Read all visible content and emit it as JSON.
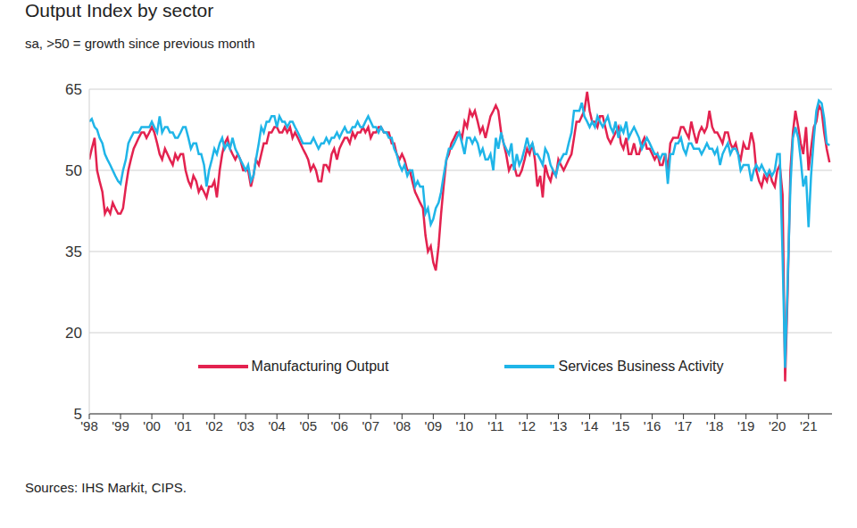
{
  "chart_data": {
    "type": "line",
    "title": "Output Index by sector",
    "subtitle": "sa, >50 = growth since previous month",
    "source": "Sources: IHS Markit, CIPS.",
    "x": [
      1998,
      1998.08,
      1998.17,
      1998.25,
      1998.33,
      1998.42,
      1998.5,
      1998.58,
      1998.67,
      1998.75,
      1998.83,
      1998.92,
      1999,
      1999.08,
      1999.17,
      1999.25,
      1999.33,
      1999.42,
      1999.5,
      1999.58,
      1999.67,
      1999.75,
      1999.83,
      1999.92,
      2000,
      2000.08,
      2000.17,
      2000.25,
      2000.33,
      2000.42,
      2000.5,
      2000.58,
      2000.67,
      2000.75,
      2000.83,
      2000.92,
      2001,
      2001.08,
      2001.17,
      2001.25,
      2001.33,
      2001.42,
      2001.5,
      2001.58,
      2001.67,
      2001.75,
      2001.83,
      2001.92,
      2002,
      2002.08,
      2002.17,
      2002.25,
      2002.33,
      2002.42,
      2002.5,
      2002.58,
      2002.67,
      2002.75,
      2002.83,
      2002.92,
      2003,
      2003.08,
      2003.17,
      2003.25,
      2003.33,
      2003.42,
      2003.5,
      2003.58,
      2003.67,
      2003.75,
      2003.83,
      2003.92,
      2004,
      2004.08,
      2004.17,
      2004.25,
      2004.33,
      2004.42,
      2004.5,
      2004.58,
      2004.67,
      2004.75,
      2004.83,
      2004.92,
      2005,
      2005.08,
      2005.17,
      2005.25,
      2005.33,
      2005.42,
      2005.5,
      2005.58,
      2005.67,
      2005.75,
      2005.83,
      2005.92,
      2006,
      2006.08,
      2006.17,
      2006.25,
      2006.33,
      2006.42,
      2006.5,
      2006.58,
      2006.67,
      2006.75,
      2006.83,
      2006.92,
      2007,
      2007.08,
      2007.17,
      2007.25,
      2007.33,
      2007.42,
      2007.5,
      2007.58,
      2007.67,
      2007.75,
      2007.83,
      2007.92,
      2008,
      2008.08,
      2008.17,
      2008.25,
      2008.33,
      2008.42,
      2008.5,
      2008.58,
      2008.67,
      2008.75,
      2008.83,
      2008.92,
      2009,
      2009.08,
      2009.17,
      2009.25,
      2009.33,
      2009.42,
      2009.5,
      2009.58,
      2009.67,
      2009.75,
      2009.83,
      2009.92,
      2010,
      2010.08,
      2010.17,
      2010.25,
      2010.33,
      2010.42,
      2010.5,
      2010.58,
      2010.67,
      2010.75,
      2010.83,
      2010.92,
      2011,
      2011.08,
      2011.17,
      2011.25,
      2011.33,
      2011.42,
      2011.5,
      2011.58,
      2011.67,
      2011.75,
      2011.83,
      2011.92,
      2012,
      2012.08,
      2012.17,
      2012.25,
      2012.33,
      2012.42,
      2012.5,
      2012.58,
      2012.67,
      2012.75,
      2012.83,
      2012.92,
      2013,
      2013.08,
      2013.17,
      2013.25,
      2013.33,
      2013.42,
      2013.5,
      2013.58,
      2013.67,
      2013.75,
      2013.83,
      2013.92,
      2014,
      2014.08,
      2014.17,
      2014.25,
      2014.33,
      2014.42,
      2014.5,
      2014.58,
      2014.67,
      2014.75,
      2014.83,
      2014.92,
      2015,
      2015.08,
      2015.17,
      2015.25,
      2015.33,
      2015.42,
      2015.5,
      2015.58,
      2015.67,
      2015.75,
      2015.83,
      2015.92,
      2016,
      2016.08,
      2016.17,
      2016.25,
      2016.33,
      2016.42,
      2016.5,
      2016.58,
      2016.67,
      2016.75,
      2016.83,
      2016.92,
      2017,
      2017.08,
      2017.17,
      2017.25,
      2017.33,
      2017.42,
      2017.5,
      2017.58,
      2017.67,
      2017.75,
      2017.83,
      2017.92,
      2018,
      2018.08,
      2018.17,
      2018.25,
      2018.33,
      2018.42,
      2018.5,
      2018.58,
      2018.67,
      2018.75,
      2018.83,
      2018.92,
      2019,
      2019.08,
      2019.17,
      2019.25,
      2019.33,
      2019.42,
      2019.5,
      2019.58,
      2019.67,
      2019.75,
      2019.83,
      2019.92,
      2020,
      2020.08,
      2020.17,
      2020.25,
      2020.33,
      2020.42,
      2020.5,
      2020.58,
      2020.67,
      2020.75,
      2020.83,
      2020.92,
      2021,
      2021.08,
      2021.17,
      2021.25,
      2021.33,
      2021.42,
      2021.5,
      2021.58,
      2021.67
    ],
    "series": [
      {
        "name": "Manufacturing Output",
        "color": "#e3224f",
        "values": [
          52,
          54,
          56,
          50,
          48,
          46,
          42,
          43,
          42,
          44,
          43,
          42,
          42,
          43,
          47,
          50,
          52,
          54,
          55,
          56,
          57,
          57,
          56,
          57,
          58,
          57,
          55,
          53,
          52,
          54,
          53,
          52,
          51,
          53,
          52,
          53,
          53,
          50,
          48,
          47,
          49,
          48,
          46,
          47,
          46,
          45,
          47,
          47,
          48,
          45,
          50,
          53,
          55,
          56,
          54,
          53,
          52,
          53,
          52,
          50,
          50,
          50,
          47,
          49,
          52,
          51,
          53,
          55,
          55,
          57,
          57,
          58,
          58,
          57,
          57,
          58,
          57,
          58,
          56,
          57,
          56,
          55,
          54,
          53,
          52,
          50,
          51,
          50,
          48,
          48,
          51,
          51,
          50,
          53,
          54,
          52,
          54,
          55,
          56,
          56,
          55,
          57,
          56,
          57,
          57,
          58,
          57,
          58,
          56,
          57,
          57,
          58,
          58,
          57,
          57,
          57,
          55,
          55,
          53,
          52,
          53,
          52,
          50,
          50,
          48,
          46,
          45,
          44,
          43,
          38,
          35,
          36,
          33,
          31.5,
          36,
          42,
          47,
          52,
          53,
          55,
          56,
          57,
          57,
          56,
          59,
          58,
          61,
          60,
          61,
          59,
          57,
          58,
          56,
          58,
          60,
          61,
          62,
          61,
          57,
          55,
          53,
          50,
          51,
          51,
          49,
          49,
          50,
          52,
          54,
          53,
          55,
          52,
          47,
          49,
          45,
          51,
          49,
          48,
          50,
          49,
          52,
          51,
          50,
          51,
          52,
          53,
          56,
          59,
          59,
          60,
          61,
          64.5,
          61,
          59,
          59,
          58,
          60,
          60,
          58,
          56,
          55,
          56,
          57,
          58,
          55,
          54,
          56,
          53,
          53,
          55,
          53,
          53,
          55,
          56,
          54,
          54,
          53,
          52,
          53,
          51,
          51,
          53,
          50,
          55,
          56,
          56,
          56,
          58,
          58,
          57,
          56,
          59,
          57,
          55,
          57,
          58,
          57,
          58,
          61,
          58,
          57,
          57,
          56,
          55,
          57,
          57,
          55,
          54,
          55,
          53,
          52,
          55,
          54,
          54,
          57,
          55,
          50,
          48,
          47,
          49,
          48,
          50,
          48,
          47,
          50,
          51,
          45.5,
          11,
          27,
          50,
          57,
          61,
          58,
          55,
          53,
          58,
          50,
          54,
          58,
          59,
          62,
          61,
          57,
          54,
          51.5
        ]
      },
      {
        "name": "Services Business Activity",
        "color": "#1fb5e8",
        "values": [
          59,
          59.5,
          58,
          57.5,
          56,
          55,
          53,
          52,
          51,
          50,
          49,
          48,
          47.5,
          50,
          52,
          55,
          56,
          57,
          57,
          57,
          58,
          58,
          58,
          58,
          59,
          58,
          57,
          60,
          57,
          58,
          58,
          57,
          57,
          56,
          56,
          57,
          58,
          58,
          56,
          54,
          55,
          55,
          53,
          53,
          51,
          47,
          50,
          52,
          54,
          53,
          55,
          56,
          54,
          55,
          54,
          56,
          54,
          53,
          52,
          51,
          50,
          51,
          48,
          49,
          52,
          55,
          58,
          57,
          59,
          59,
          60,
          60,
          58,
          60,
          59,
          59,
          58,
          59,
          59,
          58,
          57,
          56,
          55,
          55,
          55,
          55,
          56,
          55,
          54,
          55,
          55,
          56,
          55,
          56,
          56,
          57,
          56,
          57,
          58,
          57,
          57,
          58,
          58,
          59,
          58,
          58,
          59,
          60,
          59,
          58,
          58,
          57,
          58,
          57,
          57,
          56,
          56,
          54,
          53,
          51,
          50,
          51,
          49,
          50,
          50,
          47,
          48,
          47,
          47,
          42,
          43,
          40,
          41,
          43,
          44,
          46,
          49,
          52,
          54,
          54,
          55,
          56,
          57,
          55,
          53,
          56,
          56,
          55,
          56,
          55,
          53,
          54,
          52,
          52,
          53,
          50,
          56,
          54,
          57,
          55,
          54,
          53,
          55,
          50,
          53,
          51,
          52,
          54,
          56,
          54,
          55,
          53,
          53,
          52,
          51,
          54,
          53,
          51,
          50,
          49,
          51,
          52,
          53,
          53,
          55,
          57,
          61,
          61,
          61,
          62.5,
          60,
          59,
          58,
          59,
          58,
          60,
          59,
          58,
          59,
          60,
          58,
          57,
          59,
          56,
          58,
          57,
          59,
          56,
          57,
          58,
          57,
          56,
          54,
          55,
          56,
          55,
          54,
          53,
          53,
          52,
          53,
          53,
          47.5,
          53,
          53,
          55,
          55,
          56,
          54,
          53,
          55,
          55,
          54,
          54,
          54,
          53,
          54,
          55,
          54,
          54,
          53,
          54,
          51,
          53,
          54,
          55,
          53,
          54,
          54,
          53,
          50,
          51,
          51,
          51,
          48,
          50,
          51,
          50,
          51,
          50,
          49,
          50,
          49,
          50,
          53,
          53,
          34,
          13.5,
          29,
          47,
          56,
          58,
          56,
          52,
          47,
          49,
          39.5,
          49,
          56,
          61,
          62.9,
          62.4,
          59.6,
          55,
          54.6
        ]
      }
    ],
    "xlim": [
      1998,
      2021.75
    ],
    "xticks": [
      {
        "value": 1998,
        "label": "'98"
      },
      {
        "value": 1999,
        "label": "'99"
      },
      {
        "value": 2000,
        "label": "'00"
      },
      {
        "value": 2001,
        "label": "'01"
      },
      {
        "value": 2002,
        "label": "'02"
      },
      {
        "value": 2003,
        "label": "'03"
      },
      {
        "value": 2004,
        "label": "'04"
      },
      {
        "value": 2005,
        "label": "'05"
      },
      {
        "value": 2006,
        "label": "'06"
      },
      {
        "value": 2007,
        "label": "'07"
      },
      {
        "value": 2008,
        "label": "'08"
      },
      {
        "value": 2009,
        "label": "'09"
      },
      {
        "value": 2010,
        "label": "'10"
      },
      {
        "value": 2011,
        "label": "'11"
      },
      {
        "value": 2012,
        "label": "'12"
      },
      {
        "value": 2013,
        "label": "'13"
      },
      {
        "value": 2014,
        "label": "'14"
      },
      {
        "value": 2015,
        "label": "'15"
      },
      {
        "value": 2016,
        "label": "'16"
      },
      {
        "value": 2017,
        "label": "'17"
      },
      {
        "value": 2018,
        "label": "'18"
      },
      {
        "value": 2019,
        "label": "'19"
      },
      {
        "value": 2020,
        "label": "'20"
      },
      {
        "value": 2021,
        "label": "'21"
      }
    ],
    "ylim": [
      5,
      65
    ],
    "yticks": [
      5,
      20,
      35,
      50,
      65
    ],
    "grid": true,
    "legend": "bottom"
  }
}
